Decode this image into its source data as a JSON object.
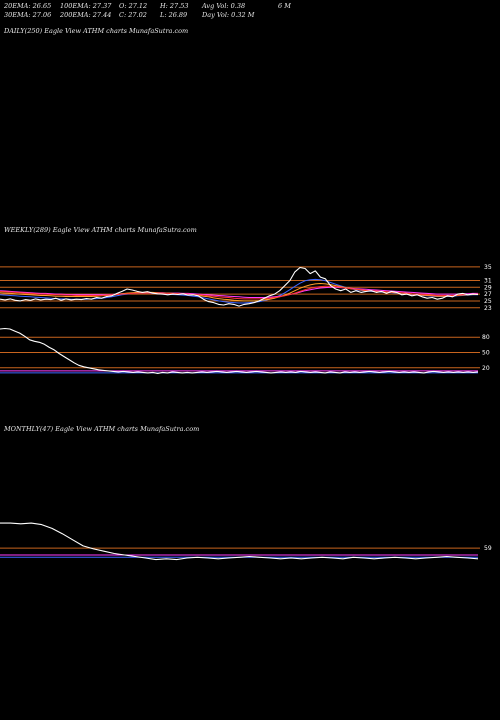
{
  "stats": {
    "row1": [
      "20EMA: 26.65",
      "100EMA: 27.37",
      "O: 27.12",
      "H: 27.53",
      "Avg Vol: 0.38",
      "6  M"
    ],
    "row2": [
      "30EMA: 27.06",
      "200EMA: 27.44",
      "C: 27.02",
      "L: 26.89",
      "Day Vol: 0.32  M"
    ]
  },
  "labels": {
    "daily": "DAILY(250) Eagle   View  ATHM charts MunafaSutra.com",
    "weekly": "WEEKLY(289) Eagle   View  ATHM charts MunafaSutra.com",
    "monthly": "MONTHLY(47) Eagle   View  ATHM charts MunafaSutra.com"
  },
  "colors": {
    "background": "#000000",
    "price": "#ffffff",
    "level_line": "#c8641e",
    "ema_blue": "#3c64ff",
    "ema_magenta": "#ff3cff",
    "ema_orange": "#ffa028",
    "ema_red": "#ff3232"
  },
  "chart_data": [
    {
      "type": "line",
      "title": "WEEKLY(289) Eagle   View  ATHM charts MunafaSutra.com",
      "ylim": [
        20,
        37
      ],
      "levels": [
        35,
        31,
        29,
        27,
        25,
        23
      ],
      "level_labels": [
        "35",
        "31",
        "29",
        "27",
        "25",
        "23"
      ],
      "series": [
        {
          "role": "price",
          "color": "#ffffff",
          "values": [
            25.5,
            25.3,
            25.6,
            25.2,
            25.0,
            25.4,
            25.2,
            25.6,
            25.3,
            25.5,
            25.4,
            25.8,
            25.2,
            25.6,
            25.3,
            25.5,
            25.4,
            25.7,
            25.5,
            26.0,
            25.8,
            26.3,
            26.5,
            27.2,
            27.8,
            28.5,
            28.2,
            27.8,
            27.5,
            27.7,
            27.3,
            27.1,
            27.0,
            26.8,
            27.0,
            26.9,
            27.1,
            26.7,
            26.8,
            26.5,
            25.5,
            24.8,
            24.5,
            24.0,
            23.8,
            24.2,
            24.0,
            23.5,
            24.0,
            24.2,
            24.5,
            25.0,
            25.8,
            26.5,
            27.0,
            28.0,
            29.5,
            31.0,
            33.5,
            34.8,
            34.5,
            33.0,
            33.8,
            32.0,
            31.5,
            29.5,
            28.5,
            28.0,
            28.5,
            27.5,
            28.0,
            27.5,
            27.8,
            28.0,
            27.5,
            27.8,
            27.2,
            27.8,
            27.5,
            26.8,
            27.0,
            26.5,
            26.8,
            26.2,
            25.8,
            26.0,
            25.5,
            25.8,
            26.5,
            26.2,
            27.0,
            27.2,
            26.8,
            27.0,
            26.9
          ]
        },
        {
          "role": "ema",
          "color": "#3c64ff",
          "values": [
            26.8,
            26.7,
            26.6,
            26.5,
            26.4,
            26.3,
            26.2,
            26.1,
            26.0,
            25.9,
            25.8,
            25.7,
            25.6,
            25.6,
            25.5,
            25.5,
            25.5,
            25.5,
            25.6,
            25.7,
            25.8,
            26.0,
            26.2,
            26.5,
            26.8,
            27.0,
            27.2,
            27.3,
            27.3,
            27.3,
            27.2,
            27.1,
            27.0,
            27.0,
            26.9,
            26.8,
            26.7,
            26.6,
            26.4,
            26.2,
            25.9,
            25.6,
            25.3,
            25.0,
            24.8,
            24.6,
            24.5,
            24.4,
            24.4,
            24.5,
            24.6,
            24.8,
            25.1,
            25.5,
            26.0,
            26.6,
            27.4,
            28.3,
            29.3,
            30.2,
            30.9,
            31.2,
            31.3,
            31.2,
            30.9,
            30.4,
            29.9,
            29.4,
            29.0,
            28.6,
            28.3,
            28.1,
            27.9,
            27.8,
            27.7,
            27.6,
            27.5,
            27.4,
            27.3,
            27.2,
            27.1,
            26.9,
            26.8,
            26.6,
            26.5,
            26.4,
            26.3,
            26.3,
            26.3,
            26.4,
            26.5,
            26.6,
            26.7,
            26.8,
            26.8
          ]
        },
        {
          "role": "ema",
          "color": "#ff3cff",
          "values": [
            28.0,
            27.9,
            27.8,
            27.7,
            27.6,
            27.5,
            27.4,
            27.3,
            27.2,
            27.2,
            27.1,
            27.0,
            27.0,
            26.9,
            26.9,
            26.8,
            26.8,
            26.8,
            26.8,
            26.8,
            26.8,
            26.8,
            26.9,
            27.0,
            27.1,
            27.2,
            27.3,
            27.4,
            27.4,
            27.4,
            27.4,
            27.4,
            27.4,
            27.3,
            27.3,
            27.3,
            27.2,
            27.2,
            27.1,
            27.0,
            26.9,
            26.8,
            26.7,
            26.6,
            26.5,
            26.4,
            26.3,
            26.2,
            26.1,
            26.0,
            26.0,
            26.0,
            26.0,
            26.1,
            26.2,
            26.4,
            26.6,
            26.9,
            27.2,
            27.6,
            28.0,
            28.3,
            28.6,
            28.8,
            28.9,
            29.0,
            29.0,
            28.9,
            28.8,
            28.7,
            28.6,
            28.5,
            28.4,
            28.3,
            28.2,
            28.1,
            28.0,
            27.9,
            27.8,
            27.7,
            27.6,
            27.5,
            27.4,
            27.3,
            27.2,
            27.1,
            27.0,
            27.0,
            27.0,
            27.0,
            27.0,
            27.1,
            27.1,
            27.2,
            27.2
          ]
        },
        {
          "role": "ema",
          "color": "#ffa028",
          "values": [
            27.4,
            27.3,
            27.2,
            27.1,
            27.0,
            26.9,
            26.8,
            26.7,
            26.6,
            26.6,
            26.5,
            26.4,
            26.4,
            26.3,
            26.3,
            26.3,
            26.3,
            26.3,
            26.3,
            26.4,
            26.5,
            26.6,
            26.7,
            26.9,
            27.1,
            27.3,
            27.4,
            27.5,
            27.5,
            27.5,
            27.5,
            27.4,
            27.3,
            27.3,
            27.2,
            27.1,
            27.0,
            26.9,
            26.8,
            26.6,
            26.4,
            26.2,
            25.9,
            25.7,
            25.5,
            25.4,
            25.2,
            25.1,
            25.0,
            25.0,
            25.0,
            25.1,
            25.3,
            25.5,
            25.8,
            26.2,
            26.7,
            27.3,
            28.0,
            28.7,
            29.3,
            29.7,
            30.0,
            30.1,
            30.0,
            29.8,
            29.5,
            29.2,
            28.9,
            28.6,
            28.4,
            28.2,
            28.0,
            27.9,
            27.8,
            27.7,
            27.6,
            27.5,
            27.4,
            27.3,
            27.1,
            27.0,
            26.8,
            26.7,
            26.6,
            26.5,
            26.4,
            26.4,
            26.4,
            26.5,
            26.6,
            26.7,
            26.8,
            26.9,
            26.9
          ]
        },
        {
          "role": "ema",
          "color": "#ff3232",
          "values": [
            27.8,
            27.7,
            27.6,
            27.5,
            27.4,
            27.3,
            27.2,
            27.1,
            27.0,
            27.0,
            26.9,
            26.8,
            26.8,
            26.7,
            26.7,
            26.6,
            26.6,
            26.6,
            26.6,
            26.6,
            26.6,
            26.7,
            26.8,
            26.9,
            27.0,
            27.1,
            27.2,
            27.3,
            27.3,
            27.3,
            27.3,
            27.3,
            27.3,
            27.2,
            27.2,
            27.1,
            27.1,
            27.0,
            26.9,
            26.8,
            26.7,
            26.5,
            26.4,
            26.2,
            26.1,
            26.0,
            25.8,
            25.7,
            25.6,
            25.6,
            25.6,
            25.6,
            25.7,
            25.8,
            26.0,
            26.2,
            26.5,
            26.9,
            27.3,
            27.8,
            28.3,
            28.7,
            29.0,
            29.2,
            29.3,
            29.3,
            29.2,
            29.0,
            28.8,
            28.6,
            28.4,
            28.3,
            28.1,
            28.0,
            27.9,
            27.8,
            27.7,
            27.6,
            27.5,
            27.4,
            27.3,
            27.1,
            27.0,
            26.9,
            26.8,
            26.7,
            26.6,
            26.6,
            26.6,
            26.6,
            26.7,
            26.8,
            26.9,
            27.0,
            27.0
          ]
        }
      ]
    },
    {
      "type": "line",
      "ylim": [
        0,
        100
      ],
      "levels": [
        80,
        50,
        20
      ],
      "level_labels": [
        "80",
        "50",
        "20"
      ],
      "series": [
        {
          "role": "indicator",
          "color": "#ffffff",
          "values": [
            96,
            97,
            96,
            92,
            88,
            82,
            75,
            72,
            70,
            66,
            60,
            55,
            48,
            42,
            36,
            30,
            25,
            22,
            20,
            18,
            16,
            15,
            14,
            13,
            12,
            13,
            12,
            11,
            12,
            11,
            10,
            11,
            9,
            11,
            10,
            12,
            11,
            10,
            11,
            10,
            11,
            12,
            11,
            12,
            13,
            12,
            11,
            12,
            13,
            12,
            11,
            12,
            13,
            12,
            11,
            10,
            11,
            12,
            11,
            12,
            11,
            13,
            12,
            11,
            12,
            11,
            10,
            12,
            11,
            10,
            12,
            11,
            12,
            11,
            12,
            13,
            12,
            11,
            12,
            13,
            12,
            11,
            12,
            11,
            12,
            11,
            10,
            12,
            13,
            12,
            11,
            12,
            11,
            12,
            11,
            12,
            11,
            12
          ]
        },
        {
          "role": "ema",
          "color": "#3c64ff",
          "values": [
            10,
            10,
            10,
            10,
            10,
            10,
            10,
            10,
            10,
            10,
            10,
            10,
            10,
            10,
            10,
            10,
            10,
            10,
            10,
            10,
            10,
            10,
            10,
            10,
            10,
            10,
            10,
            10,
            10,
            10,
            10,
            10,
            10,
            10,
            10,
            10,
            10,
            10,
            10,
            10,
            10,
            10,
            10,
            10,
            10,
            10,
            10,
            10,
            10,
            10,
            10,
            10,
            10,
            10,
            10,
            10,
            10,
            10,
            10,
            10,
            10,
            10,
            10,
            10,
            10,
            10,
            10,
            10,
            10,
            10,
            10,
            10,
            10,
            10,
            10,
            10,
            10,
            10,
            10,
            10,
            10,
            10,
            10,
            10,
            10,
            10,
            10,
            10,
            10,
            10,
            10,
            10,
            10,
            10,
            10,
            10,
            10,
            10
          ]
        },
        {
          "role": "ema",
          "color": "#ff3cff",
          "values": [
            14,
            14,
            14,
            14,
            14,
            14,
            14,
            14,
            14,
            14,
            14,
            14,
            14,
            14,
            14,
            14,
            14,
            14,
            14,
            14,
            14,
            14,
            14,
            14,
            14,
            14,
            14,
            14,
            14,
            14,
            14,
            14,
            14,
            14,
            14,
            14,
            14,
            14,
            14,
            14,
            14,
            14,
            14,
            14,
            14,
            14,
            14,
            14,
            14,
            14,
            14,
            14,
            14,
            14,
            14,
            14,
            14,
            14,
            14,
            14,
            14,
            14,
            14,
            14,
            14,
            14,
            14,
            14,
            14,
            14,
            14,
            14,
            14,
            14,
            14,
            14,
            14,
            14,
            14,
            14,
            14,
            14,
            14,
            14,
            14,
            14,
            14,
            14,
            14,
            14,
            14,
            14,
            14,
            14,
            14,
            14,
            14,
            14
          ]
        }
      ]
    },
    {
      "type": "line",
      "title": "MONTHLY(47) Eagle   View  ATHM charts MunafaSutra.com",
      "ylim": [
        0,
        100
      ],
      "levels": [
        59
      ],
      "level_labels": [
        "59"
      ],
      "series": [
        {
          "role": "indicator",
          "color": "#ffffff",
          "values": [
            92,
            92,
            91,
            92,
            90,
            85,
            78,
            70,
            62,
            58,
            55,
            52,
            50,
            48,
            46,
            44,
            45,
            44,
            46,
            47,
            46,
            45,
            46,
            47,
            48,
            47,
            46,
            45,
            46,
            45,
            46,
            47,
            46,
            45,
            47,
            46,
            45,
            46,
            47,
            46,
            45,
            46,
            47,
            48,
            47,
            46,
            45
          ]
        },
        {
          "role": "ema",
          "color": "#3c64ff",
          "values": [
            47,
            47,
            47,
            47,
            47,
            47,
            47,
            47,
            47,
            47,
            47,
            47,
            47,
            47,
            47,
            47,
            47,
            47,
            47,
            47,
            47,
            47,
            47,
            47,
            47,
            47,
            47,
            47,
            47,
            47,
            47,
            47,
            47,
            47,
            47,
            47,
            47,
            47,
            47,
            47,
            47,
            47,
            47,
            47,
            47,
            47,
            47
          ]
        },
        {
          "role": "ema",
          "color": "#ff3cff",
          "values": [
            50,
            50,
            50,
            50,
            50,
            50,
            50,
            50,
            50,
            50,
            50,
            50,
            50,
            50,
            50,
            50,
            50,
            50,
            50,
            50,
            50,
            50,
            50,
            50,
            50,
            50,
            50,
            50,
            50,
            50,
            50,
            50,
            50,
            50,
            50,
            50,
            50,
            50,
            50,
            50,
            50,
            50,
            50,
            50,
            50,
            50,
            50
          ]
        }
      ]
    }
  ]
}
